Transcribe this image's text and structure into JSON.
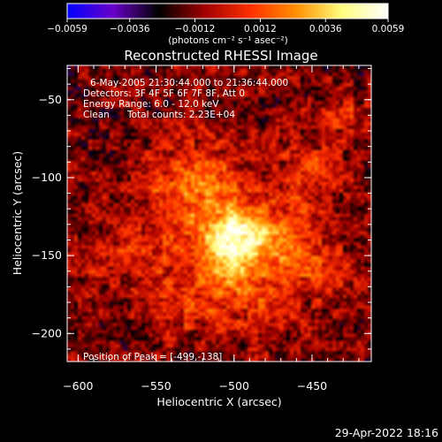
{
  "chart_data": {
    "type": "heatmap",
    "title": "Reconstructed RHESSI Image",
    "xlabel": "Heliocentric X (arcsec)",
    "ylabel": "Heliocentric Y (arcsec)",
    "xlim": [
      -607,
      -412
    ],
    "ylim": [
      -218,
      -28
    ],
    "xticks": [
      {
        "value": -600,
        "label": "−600"
      },
      {
        "value": -550,
        "label": "−550"
      },
      {
        "value": -500,
        "label": "−500"
      },
      {
        "value": -450,
        "label": "−450"
      }
    ],
    "yticks": [
      {
        "value": -50,
        "label": "−50"
      },
      {
        "value": -100,
        "label": "−100"
      },
      {
        "value": -150,
        "label": "−150"
      },
      {
        "value": -200,
        "label": "−200"
      }
    ],
    "colorbar": {
      "range": [
        -0.0059,
        0.0059
      ],
      "ticks": [
        {
          "value": -0.0059,
          "label": "−0.0059"
        },
        {
          "value": -0.0036,
          "label": "−0.0036"
        },
        {
          "value": -0.0012,
          "label": "−0.0012"
        },
        {
          "value": 0.0012,
          "label": "0.0012"
        },
        {
          "value": 0.0036,
          "label": "0.0036"
        },
        {
          "value": 0.0059,
          "label": "0.0059"
        }
      ],
      "unit_label": "(photons cm⁻² s⁻¹ asec⁻²)",
      "colormap": [
        "#0000ff",
        "#6a00c8",
        "#000000",
        "#a00000",
        "#ff3000",
        "#ff9000",
        "#ffff80",
        "#ffffff"
      ]
    },
    "annotations": {
      "time_range": "6-May-2005 21:30:44.000 to 21:36:44.000",
      "detectors": "Detectors: 3F 4F 5F 6F 7F 8F, Att 0",
      "energy_range": "Energy Range: 6.0 - 12.0 keV",
      "clean": "Clean",
      "total_counts": "Total counts: 2.23E+04",
      "peak_position": "Position of Peak = [-499,-138]"
    },
    "peak": {
      "x": -499,
      "y": -138
    },
    "sources": [
      {
        "x": -499,
        "y": -138,
        "sigma": 13,
        "amp": 0.0045
      },
      {
        "x": -525,
        "y": -110,
        "sigma": 22,
        "amp": 0.0033
      },
      {
        "x": -505,
        "y": -165,
        "sigma": 18,
        "amp": 0.003
      },
      {
        "x": -470,
        "y": -140,
        "sigma": 20,
        "amp": 0.0026
      },
      {
        "x": -450,
        "y": -95,
        "sigma": 14,
        "amp": 0.002
      },
      {
        "x": -430,
        "y": -60,
        "sigma": 10,
        "amp": 0.0016
      },
      {
        "x": -560,
        "y": -150,
        "sigma": 16,
        "amp": 0.0014
      },
      {
        "x": -540,
        "y": -185,
        "sigma": 14,
        "amp": 0.0015
      },
      {
        "x": -470,
        "y": -185,
        "sigma": 14,
        "amp": 0.0012
      },
      {
        "x": -590,
        "y": -160,
        "sigma": 11,
        "amp": 0.0009
      },
      {
        "x": -440,
        "y": -160,
        "sigma": 12,
        "amp": 0.0013
      }
    ],
    "background": -0.0013
  },
  "footer": {
    "timestamp": "29-Apr-2022 18:16"
  }
}
